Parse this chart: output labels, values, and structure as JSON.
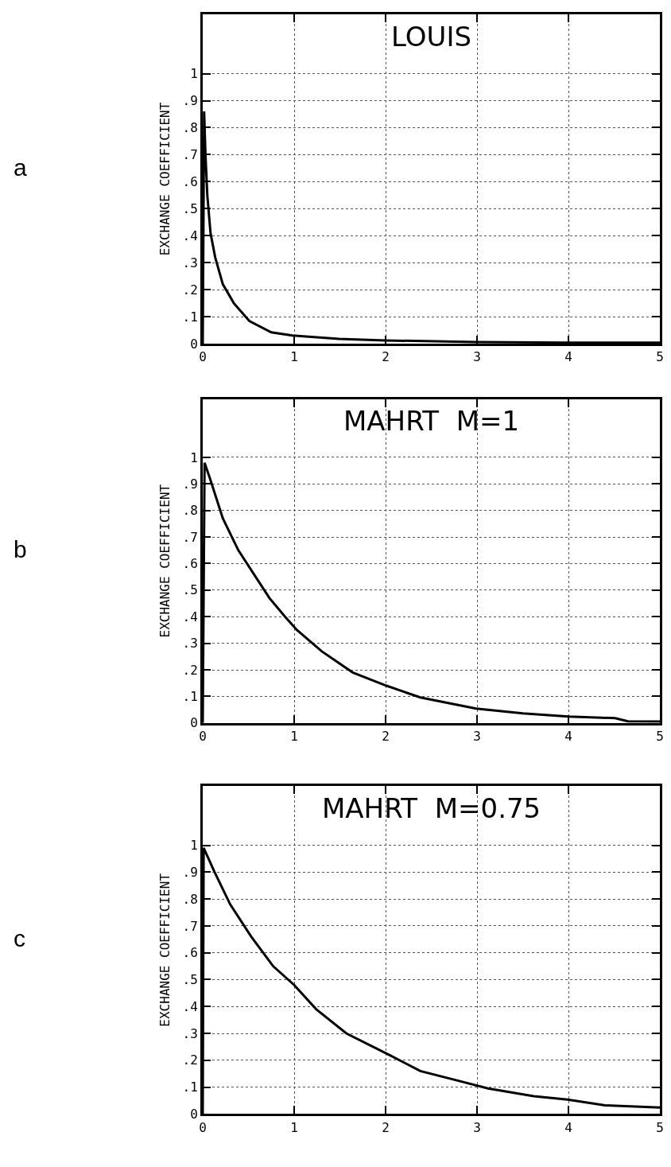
{
  "chart_data": [
    {
      "type": "line",
      "title": "LOUIS",
      "ylabel": "EXCHANGE COEFFICIENT",
      "annotations": [
        "a"
      ],
      "xlim": [
        0,
        5
      ],
      "ylim": [
        0,
        1.22
      ],
      "xticks": [
        0,
        1,
        2,
        3,
        4,
        5
      ],
      "yticks": [
        0,
        {
          "value": 0.1,
          "label": ".1"
        },
        {
          "value": 0.2,
          "label": ".2"
        },
        {
          "value": 0.3,
          "label": ".3"
        },
        {
          "value": 0.4,
          "label": ".4"
        },
        {
          "value": 0.5,
          "label": ".5"
        },
        {
          "value": 0.6,
          "label": ".6"
        },
        {
          "value": 0.7,
          "label": ".7"
        },
        {
          "value": 0.8,
          "label": ".8"
        },
        {
          "value": 0.9,
          "label": ".9"
        },
        1
      ],
      "grid": true,
      "line_style": "solid",
      "color": "#000000",
      "x": [
        0,
        0.015,
        0.03,
        0.05,
        0.085,
        0.136,
        0.22,
        0.34,
        0.51,
        0.75,
        0.98,
        1.49,
        2,
        3,
        4,
        5
      ],
      "values": [
        0,
        0.86,
        0.7,
        0.55,
        0.41,
        0.32,
        0.22,
        0.15,
        0.084,
        0.042,
        0.03,
        0.018,
        0.012,
        0.006,
        0.004,
        0.004
      ]
    },
    {
      "type": "line",
      "title": "MAHRT  M=1",
      "ylabel": "EXCHANGE COEFFICIENT",
      "annotations": [
        "b"
      ],
      "xlim": [
        0,
        5
      ],
      "ylim": [
        0,
        1.22
      ],
      "xticks": [
        0,
        1,
        2,
        3,
        4,
        5
      ],
      "yticks": [
        0,
        {
          "value": 0.1,
          "label": ".1"
        },
        {
          "value": 0.2,
          "label": ".2"
        },
        {
          "value": 0.3,
          "label": ".3"
        },
        {
          "value": 0.4,
          "label": ".4"
        },
        {
          "value": 0.5,
          "label": ".5"
        },
        {
          "value": 0.6,
          "label": ".6"
        },
        {
          "value": 0.7,
          "label": ".7"
        },
        {
          "value": 0.8,
          "label": ".8"
        },
        {
          "value": 0.9,
          "label": ".9"
        },
        1
      ],
      "grid": true,
      "line_style": "solid",
      "color": "#000000",
      "x": [
        0,
        0.02,
        0.08,
        0.22,
        0.39,
        0.56,
        0.73,
        0.9,
        1.03,
        1.3,
        1.64,
        2.01,
        2.38,
        2.99,
        3.5,
        4,
        4.51,
        4.65,
        5
      ],
      "values": [
        0,
        0.98,
        0.92,
        0.77,
        0.65,
        0.56,
        0.47,
        0.4,
        0.35,
        0.27,
        0.19,
        0.14,
        0.096,
        0.054,
        0.036,
        0.024,
        0.018,
        0.006,
        0.005
      ]
    },
    {
      "type": "line",
      "title": "MAHRT  M=0.75",
      "ylabel": "EXCHANGE COEFFICIENT",
      "annotations": [
        "c"
      ],
      "xlim": [
        0,
        5
      ],
      "ylim": [
        0,
        1.22
      ],
      "xticks": [
        0,
        1,
        2,
        3,
        4,
        5
      ],
      "yticks": [
        0,
        {
          "value": 0.1,
          "label": ".1"
        },
        {
          "value": 0.2,
          "label": ".2"
        },
        {
          "value": 0.3,
          "label": ".3"
        },
        {
          "value": 0.4,
          "label": ".4"
        },
        {
          "value": 0.5,
          "label": ".5"
        },
        {
          "value": 0.6,
          "label": ".6"
        },
        {
          "value": 0.7,
          "label": ".7"
        },
        {
          "value": 0.8,
          "label": ".8"
        },
        {
          "value": 0.9,
          "label": ".9"
        },
        1
      ],
      "grid": true,
      "line_style": "solid",
      "color": "#000000",
      "x": [
        0,
        0.01,
        0.13,
        0.3,
        0.53,
        0.77,
        1.0,
        1.24,
        1.57,
        2.04,
        2.38,
        2.78,
        3.12,
        3.62,
        3.99,
        4.4,
        5
      ],
      "values": [
        0,
        0.99,
        0.9,
        0.78,
        0.66,
        0.55,
        0.48,
        0.39,
        0.3,
        0.22,
        0.16,
        0.125,
        0.095,
        0.066,
        0.054,
        0.032,
        0.024
      ]
    }
  ]
}
